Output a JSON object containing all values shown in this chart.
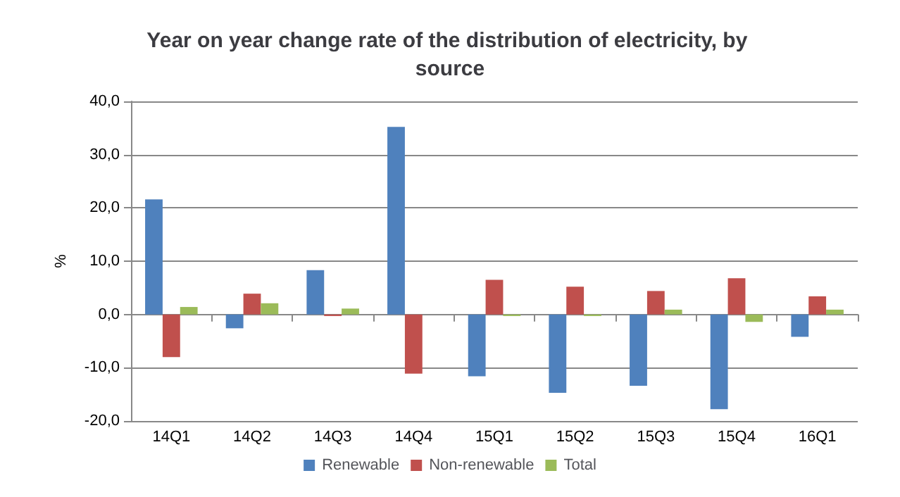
{
  "chart_data": {
    "type": "bar",
    "title": "Year on year change rate of the distribution of electricity, by source",
    "ylabel": "%",
    "categories": [
      "14Q1",
      "14Q2",
      "14Q3",
      "14Q4",
      "15Q1",
      "15Q2",
      "15Q3",
      "15Q4",
      "16Q1"
    ],
    "series": [
      {
        "name": "Renewable",
        "color": "#4f81bd",
        "values": [
          21.6,
          -2.6,
          8.3,
          35.2,
          -11.6,
          -14.7,
          -13.4,
          -17.8,
          -4.2
        ]
      },
      {
        "name": "Non-renewable",
        "color": "#c0504d",
        "values": [
          -8.0,
          3.9,
          -0.3,
          -11.1,
          6.5,
          5.2,
          4.4,
          6.8,
          3.4
        ]
      },
      {
        "name": "Total",
        "color": "#9bbb59",
        "values": [
          1.4,
          2.1,
          1.1,
          0,
          -0.3,
          -0.3,
          0.9,
          -1.4,
          0.9
        ]
      }
    ],
    "ylim": [
      -20,
      40
    ],
    "yticks": [
      {
        "value": -20,
        "label": "-20,0"
      },
      {
        "value": -10,
        "label": "-10,0"
      },
      {
        "value": 0,
        "label": "0,0"
      },
      {
        "value": 10,
        "label": "10,0"
      },
      {
        "value": 20,
        "label": "20,0"
      },
      {
        "value": 30,
        "label": "30,0"
      },
      {
        "value": 40,
        "label": "40,0"
      }
    ],
    "grid": "y",
    "legend": "bottom"
  }
}
